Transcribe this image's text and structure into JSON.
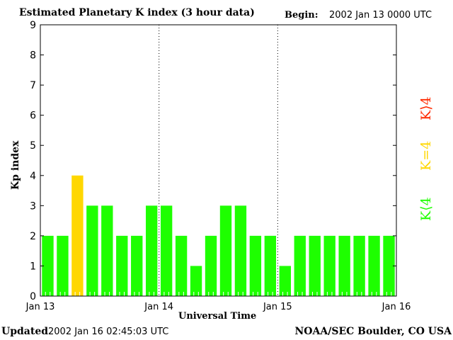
{
  "chart_data": {
    "type": "bar",
    "title": "Estimated Planetary K index (3 hour data)",
    "begin_label": "Begin:",
    "begin_value": "2002 Jan 13 0000 UTC",
    "xlabel": "Universal Time",
    "ylabel": "Kp index",
    "ylim": [
      0,
      9
    ],
    "yticks": [
      "0",
      "1",
      "2",
      "3",
      "4",
      "5",
      "6",
      "7",
      "8",
      "9"
    ],
    "xticks": [
      "Jan 13",
      "Jan 14",
      "Jan 15",
      "Jan 16"
    ],
    "values": [
      2,
      2,
      4,
      3,
      3,
      2,
      2,
      3,
      3,
      2,
      1,
      2,
      3,
      3,
      2,
      2,
      1,
      2,
      2,
      2,
      2,
      2,
      2,
      2
    ],
    "colors": {
      "below4": "#1eff00",
      "equal4": "#ffd700",
      "above4": "#ff2a00"
    },
    "legend": [
      {
        "label": "K<4",
        "color": "#1eff00"
      },
      {
        "label": "K=4",
        "color": "#ffd700"
      },
      {
        "label": "K>4",
        "color": "#ff2a00"
      }
    ],
    "legend_placement": "right",
    "grid": "dotted vertical lines at day boundaries"
  },
  "footer": {
    "updated_label": "Updated",
    "updated_value": "2002 Jan 16 02:45:03 UTC",
    "source": "NOAA/SEC Boulder, CO USA"
  }
}
